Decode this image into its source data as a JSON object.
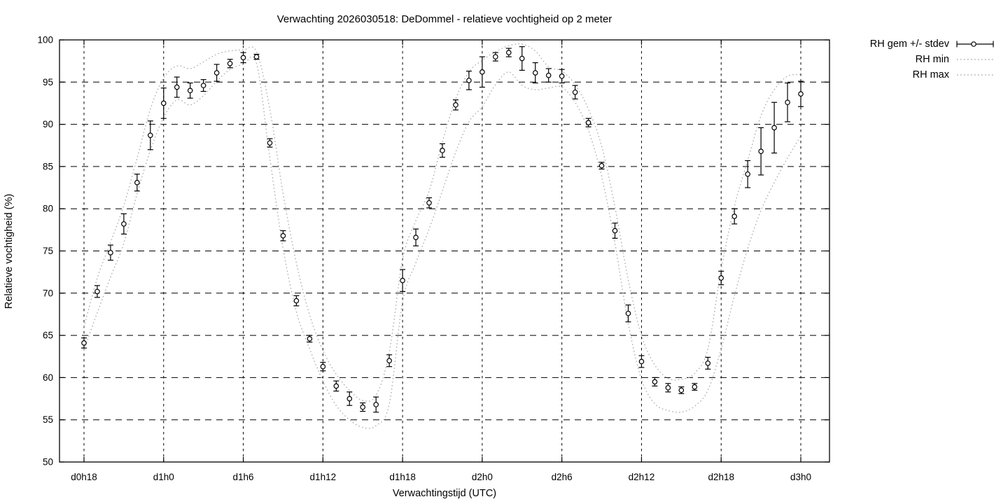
{
  "title": "Verwachting 2026030518: DeDommel - relatieve vochtigheid op 2 meter",
  "chart_data": {
    "type": "scatter",
    "title": "Verwachting 2026030518: DeDommel - relatieve vochtigheid op 2 meter",
    "xlabel": "Verwachtingstijd (UTC)",
    "ylabel": "Relatieve vochtigheid (%)",
    "ylim": [
      50,
      100
    ],
    "ytick_step": 5,
    "ytick_labels": [
      "50",
      "55",
      "60",
      "65",
      "70",
      "75",
      "80",
      "85",
      "90",
      "95",
      "100"
    ],
    "x_ticks_hours": [
      18,
      24,
      30,
      36,
      42,
      48,
      54,
      60,
      66,
      72
    ],
    "x_tick_labels": [
      "d0h18",
      "d1h0",
      "d1h6",
      "d1h12",
      "d1h18",
      "d2h0",
      "d2h6",
      "d2h12",
      "d2h18",
      "d3h0"
    ],
    "hours_start": 18,
    "grid": true,
    "legend_position": "outside-top-right",
    "colors": {
      "points": "#000000",
      "grid": "#000000",
      "minmax": "#b0b0b0",
      "background": "#ffffff"
    },
    "series": [
      {
        "name": "RH gem +/- stdev",
        "style": "points-with-errorbars",
        "mean": [
          64.1,
          70.2,
          74.8,
          78.2,
          83.1,
          88.7,
          92.5,
          94.4,
          94.0,
          94.6,
          96.1,
          97.2,
          97.9,
          98.0,
          87.8,
          76.8,
          69.1,
          64.6,
          61.3,
          59.0,
          57.5,
          56.5,
          56.8,
          62.0,
          71.5,
          76.6,
          80.7,
          86.9,
          92.3,
          95.2,
          96.2,
          98.0,
          98.5,
          97.8,
          96.1,
          95.8,
          95.7,
          93.8,
          90.2,
          85.1,
          77.4,
          67.6,
          61.9,
          59.5,
          58.8,
          58.5,
          58.9,
          61.7,
          71.8,
          79.1,
          84.1,
          86.8,
          89.6,
          92.6,
          93.6
        ],
        "stdev": [
          0.6,
          0.7,
          0.9,
          1.2,
          1.0,
          1.7,
          1.8,
          1.2,
          0.9,
          0.7,
          1.0,
          0.5,
          0.6,
          0.3,
          0.5,
          0.6,
          0.6,
          0.4,
          0.5,
          0.6,
          0.8,
          0.5,
          0.9,
          0.7,
          1.3,
          1.0,
          0.6,
          0.8,
          0.6,
          1.1,
          1.8,
          0.5,
          0.5,
          1.4,
          1.2,
          0.8,
          0.8,
          0.8,
          0.5,
          0.4,
          0.9,
          1.0,
          0.7,
          0.5,
          0.5,
          0.4,
          0.4,
          0.7,
          0.8,
          0.9,
          1.6,
          2.8,
          3.0,
          2.3,
          1.5
        ]
      },
      {
        "name": "RH min",
        "style": "dotted-line",
        "values": [
          63.3,
          67.7,
          71.9,
          75.9,
          81.8,
          86.9,
          90.8,
          92.9,
          92.3,
          93.4,
          95.1,
          96.5,
          97.1,
          97.2,
          86.0,
          75.3,
          67.8,
          63.4,
          59.6,
          56.7,
          55.0,
          54.1,
          54.3,
          56.9,
          69.0,
          73.6,
          77.6,
          82.1,
          86.7,
          90.3,
          92.1,
          94.7,
          96.2,
          94.6,
          94.1,
          94.3,
          94.4,
          92.6,
          89.3,
          83.8,
          75.9,
          66.4,
          59.8,
          56.9,
          56.1,
          55.9,
          56.6,
          58.5,
          63.4,
          69.7,
          75.3,
          79.8,
          83.1,
          86.0,
          88.6
        ]
      },
      {
        "name": "RH max",
        "style": "dotted-line",
        "values": [
          66.0,
          71.8,
          76.0,
          80.4,
          86.0,
          91.8,
          95.5,
          96.9,
          96.6,
          97.4,
          98.3,
          98.7,
          98.8,
          98.6,
          91.8,
          81.8,
          73.6,
          67.4,
          63.2,
          60.4,
          58.5,
          57.3,
          57.9,
          63.0,
          74.0,
          78.6,
          82.1,
          87.9,
          93.0,
          96.2,
          97.6,
          98.6,
          99.3,
          99.5,
          98.7,
          96.8,
          96.3,
          94.7,
          91.8,
          87.4,
          80.2,
          71.6,
          65.0,
          61.5,
          59.9,
          59.8,
          60.5,
          63.4,
          72.8,
          80.3,
          85.7,
          91.0,
          94.1,
          95.7,
          95.9
        ]
      }
    ]
  }
}
